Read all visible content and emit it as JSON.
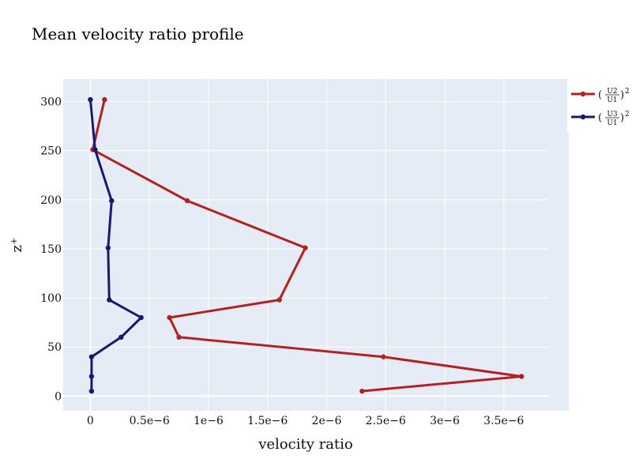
{
  "chart_data": {
    "type": "line",
    "title": "Mean velocity ratio profile",
    "xlabel": "velocity ratio",
    "ylabel": "z⁺",
    "xlim": [
      -2.3e-07,
      4.05e-06
    ],
    "ylim": [
      -15,
      323
    ],
    "x_ticks": [
      {
        "value": 0,
        "label": "0"
      },
      {
        "value": 5e-07,
        "label": "0.5e−6"
      },
      {
        "value": 1e-06,
        "label": "1e−6"
      },
      {
        "value": 1.5e-06,
        "label": "1.5e−6"
      },
      {
        "value": 2e-06,
        "label": "2e−6"
      },
      {
        "value": 2.5e-06,
        "label": "2.5e−6"
      },
      {
        "value": 3e-06,
        "label": "3e−6"
      },
      {
        "value": 3.5e-06,
        "label": "3.5e−6"
      }
    ],
    "y_ticks": [
      {
        "value": 0,
        "label": "0"
      },
      {
        "value": 50,
        "label": "50"
      },
      {
        "value": 100,
        "label": "100"
      },
      {
        "value": 150,
        "label": "150"
      },
      {
        "value": 200,
        "label": "200"
      },
      {
        "value": 250,
        "label": "250"
      },
      {
        "value": 300,
        "label": "300"
      }
    ],
    "grid": true,
    "legend_position": "top-right",
    "colors": {
      "plot_bg": "#e5ecf6",
      "grid": "#ffffff"
    },
    "series": [
      {
        "name": "(U2/U1)²",
        "legend_num": "U",
        "legend_num_sub": "2",
        "legend_den": "U",
        "legend_den_sub": "1",
        "color": "#b22222",
        "points": [
          {
            "x": 2.3e-06,
            "y": 5
          },
          {
            "x": 3.65e-06,
            "y": 20
          },
          {
            "x": 2.48e-06,
            "y": 40
          },
          {
            "x": 7.5e-07,
            "y": 60
          },
          {
            "x": 6.7e-07,
            "y": 80
          },
          {
            "x": 1.6e-06,
            "y": 98
          },
          {
            "x": 1.82e-06,
            "y": 151
          },
          {
            "x": 8.2e-07,
            "y": 199
          },
          {
            "x": 2e-08,
            "y": 251
          },
          {
            "x": 1.2e-07,
            "y": 302
          }
        ]
      },
      {
        "name": "(U3/U1)²",
        "legend_num": "U",
        "legend_num_sub": "3",
        "legend_den": "U",
        "legend_den_sub": "1",
        "color": "#191970",
        "points": [
          {
            "x": 1e-08,
            "y": 5
          },
          {
            "x": 1e-08,
            "y": 20
          },
          {
            "x": 1e-08,
            "y": 40
          },
          {
            "x": 2.6e-07,
            "y": 60
          },
          {
            "x": 4.3e-07,
            "y": 80
          },
          {
            "x": 1.6e-07,
            "y": 98
          },
          {
            "x": 1.5e-07,
            "y": 151
          },
          {
            "x": 1.8e-07,
            "y": 199
          },
          {
            "x": 4e-08,
            "y": 251
          },
          {
            "x": 0,
            "y": 302
          }
        ]
      }
    ]
  }
}
